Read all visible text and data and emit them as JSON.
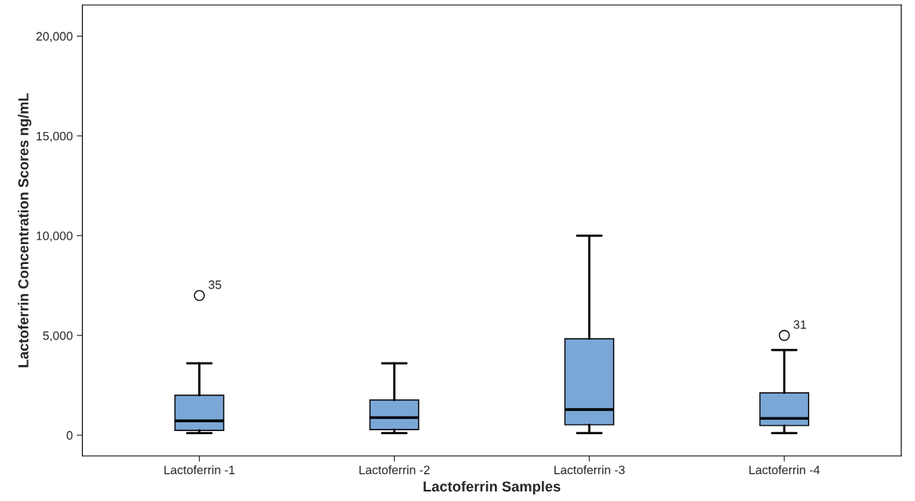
{
  "chart_data": {
    "type": "box",
    "xlabel": "Lactoferrin Samples",
    "ylabel": "Lactoferrin Concentration Scores ng/mL",
    "categories": [
      "Lactoferrin -1",
      "Lactoferrin -2",
      "Lactoferrin -3",
      "Lactoferrin -4"
    ],
    "boxes": [
      {
        "low": 100,
        "q1": 240,
        "median": 720,
        "q3": 2000,
        "high": 3600,
        "outliers": [
          7000
        ]
      },
      {
        "low": 100,
        "q1": 280,
        "median": 880,
        "q3": 1760,
        "high": 3600
      },
      {
        "low": 100,
        "q1": 520,
        "median": 1280,
        "q3": 4830,
        "high": 10000
      },
      {
        "low": 100,
        "q1": 480,
        "median": 840,
        "q3": 2120,
        "high": 4270,
        "outliers": [
          5000
        ]
      }
    ],
    "color": "#7ba7d7",
    "ylim": [
      -1040,
      21560
    ],
    "yticks": [
      {
        "value": 0,
        "label": "0"
      },
      {
        "value": 5000,
        "label": "5,000"
      },
      {
        "value": 10000,
        "label": "10,000"
      },
      {
        "value": 15000,
        "label": "15,000"
      },
      {
        "value": 20000,
        "label": "20,000"
      }
    ],
    "annotations": [
      "35",
      "31"
    ],
    "grid": false
  }
}
